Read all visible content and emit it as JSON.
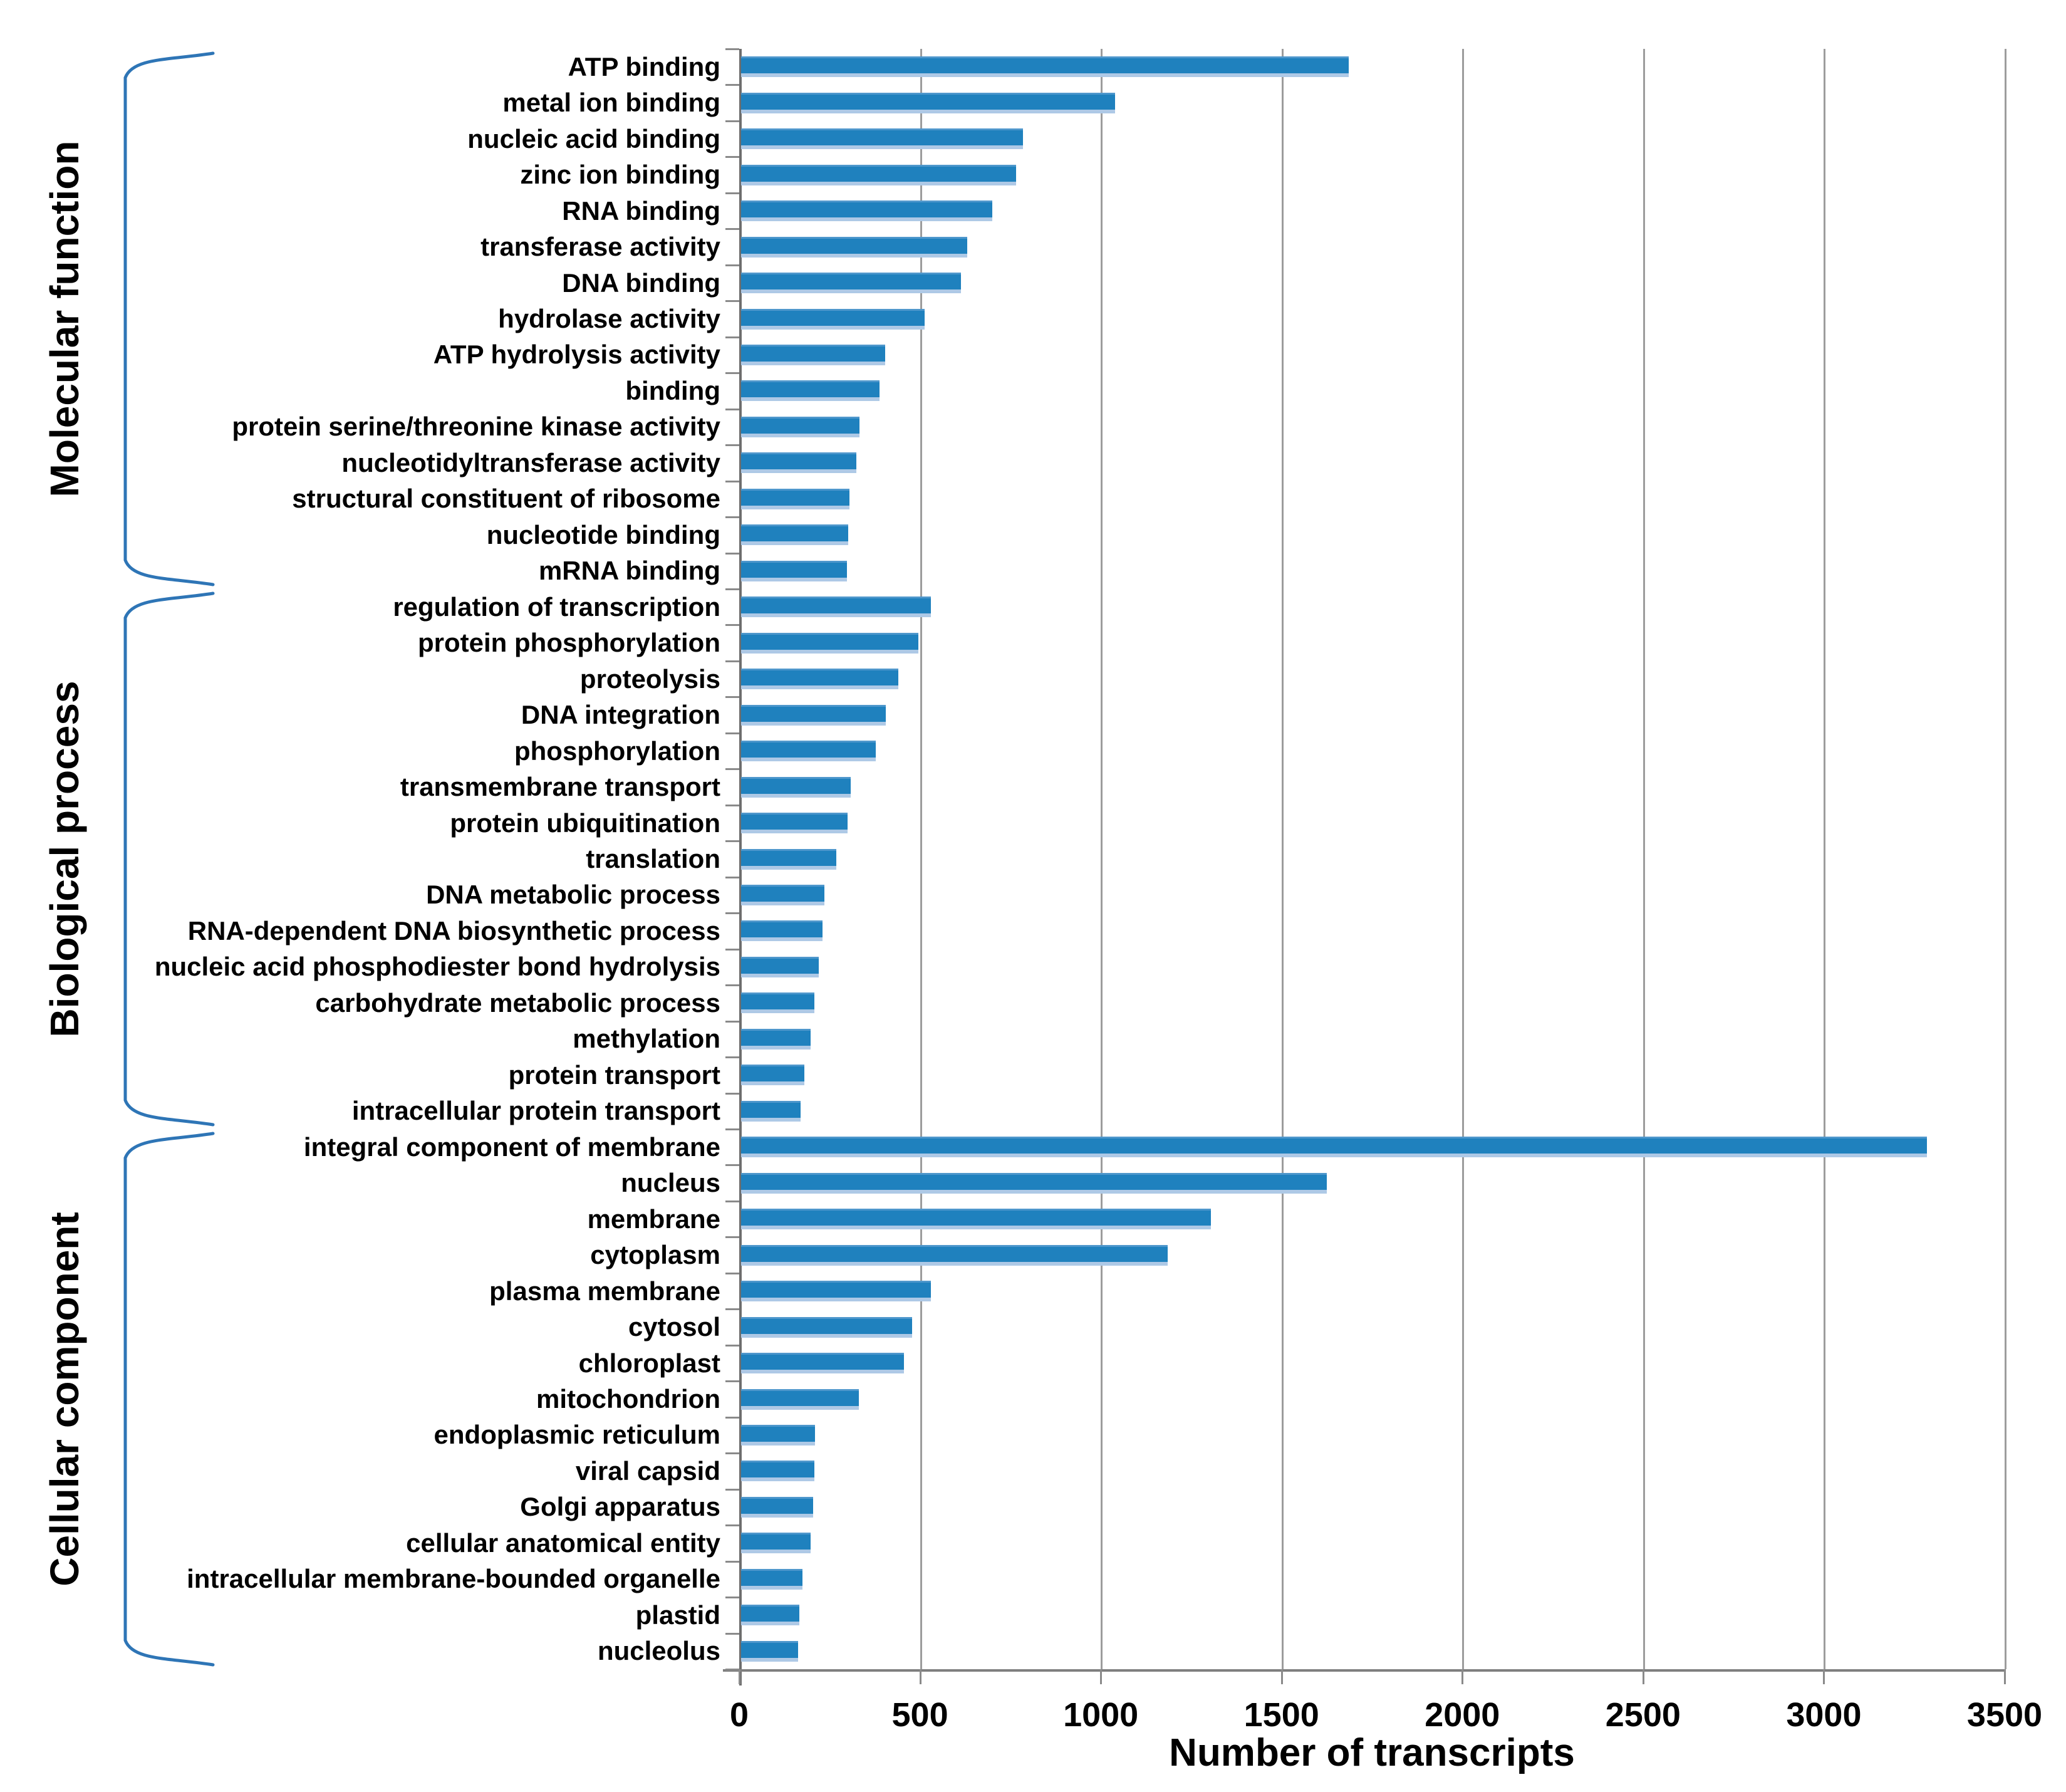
{
  "chart_data": {
    "type": "bar",
    "orientation": "horizontal",
    "xlabel": "Number of transcripts",
    "xlim": [
      0,
      3500
    ],
    "xticks": [
      "0",
      "500",
      "1000",
      "1500",
      "2000",
      "2500",
      "3000",
      "3500"
    ],
    "grid": true,
    "legend": false,
    "bar_color": "#1F81BE",
    "bar_edge_color": "#AEC9E6",
    "bracket_color": "#2E75B6",
    "groups": [
      {
        "label": "Molecular function",
        "items": [
          {
            "term": "ATP binding",
            "value": 1680
          },
          {
            "term": "metal ion binding",
            "value": 1035
          },
          {
            "term": "nucleic acid binding",
            "value": 780
          },
          {
            "term": "zinc ion binding",
            "value": 760
          },
          {
            "term": "RNA binding",
            "value": 695
          },
          {
            "term": "transferase activity",
            "value": 625
          },
          {
            "term": "DNA binding",
            "value": 608
          },
          {
            "term": "hydrolase activity",
            "value": 508
          },
          {
            "term": "ATP hydrolysis activity",
            "value": 398
          },
          {
            "term": "binding",
            "value": 383
          },
          {
            "term": "protein serine/threonine kinase activity",
            "value": 328
          },
          {
            "term": "nucleotidyltransferase activity",
            "value": 318
          },
          {
            "term": "structural constituent of ribosome",
            "value": 300
          },
          {
            "term": "nucleotide binding",
            "value": 296
          },
          {
            "term": "mRNA binding",
            "value": 292
          }
        ]
      },
      {
        "label": "Biological process",
        "items": [
          {
            "term": "regulation of transcription",
            "value": 525
          },
          {
            "term": "protein phosphorylation",
            "value": 490
          },
          {
            "term": "proteolysis",
            "value": 435
          },
          {
            "term": "DNA integration",
            "value": 400
          },
          {
            "term": "phosphorylation",
            "value": 372
          },
          {
            "term": "transmembrane transport",
            "value": 303
          },
          {
            "term": "protein ubiquitination",
            "value": 295
          },
          {
            "term": "translation",
            "value": 263
          },
          {
            "term": "DNA metabolic process",
            "value": 230
          },
          {
            "term": "RNA-dependent DNA biosynthetic process",
            "value": 225
          },
          {
            "term": "nucleic acid phosphodiester bond hydrolysis",
            "value": 215
          },
          {
            "term": "carbohydrate metabolic process",
            "value": 203
          },
          {
            "term": "methylation",
            "value": 193
          },
          {
            "term": "protein transport",
            "value": 175
          },
          {
            "term": "intracellular protein transport",
            "value": 165
          }
        ]
      },
      {
        "label": "Cellular component",
        "items": [
          {
            "term": "integral component of membrane",
            "value": 3280
          },
          {
            "term": "nucleus",
            "value": 1620
          },
          {
            "term": "membrane",
            "value": 1300
          },
          {
            "term": "cytoplasm",
            "value": 1180
          },
          {
            "term": "plasma membrane",
            "value": 525
          },
          {
            "term": "cytosol",
            "value": 473
          },
          {
            "term": "chloroplast",
            "value": 450
          },
          {
            "term": "mitochondrion",
            "value": 325
          },
          {
            "term": "endoplasmic reticulum",
            "value": 205
          },
          {
            "term": "viral capsid",
            "value": 202
          },
          {
            "term": "Golgi apparatus",
            "value": 200
          },
          {
            "term": "cellular anatomical entity",
            "value": 192
          },
          {
            "term": "intracellular membrane-bounded organelle",
            "value": 170
          },
          {
            "term": "plastid",
            "value": 162
          },
          {
            "term": "nucleolus",
            "value": 158
          }
        ]
      }
    ]
  }
}
